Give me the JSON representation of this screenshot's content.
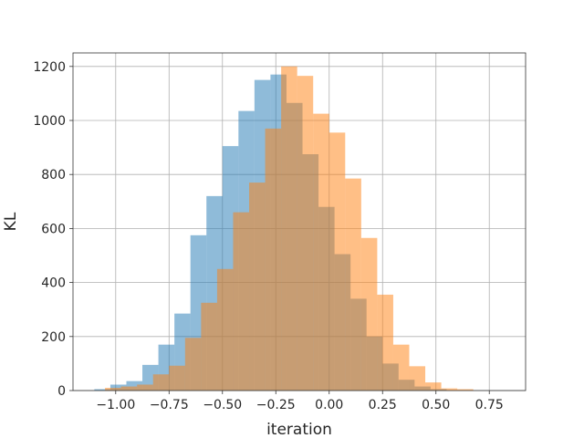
{
  "chart_data": {
    "type": "histogram",
    "title": "",
    "xlabel": "iteration",
    "ylabel": "KL",
    "xlim": [
      -1.2,
      0.92
    ],
    "ylim": [
      0,
      1250
    ],
    "xticks": [
      -1.0,
      -0.75,
      -0.5,
      -0.25,
      0.0,
      0.25,
      0.5,
      0.75
    ],
    "xtick_labels": [
      "−1.00",
      "−0.75",
      "−0.50",
      "−0.25",
      "0.00",
      "0.25",
      "0.50",
      "0.75"
    ],
    "yticks": [
      0,
      200,
      400,
      600,
      800,
      1000,
      1200
    ],
    "ytick_labels": [
      "0",
      "200",
      "400",
      "600",
      "800",
      "1000",
      "1200"
    ],
    "grid": true,
    "legend": "none",
    "bin_width": 0.075,
    "series": [
      {
        "color": "#1f77b4",
        "alpha": 0.5,
        "bin_start": -1.1,
        "counts": [
          5,
          22,
          35,
          95,
          170,
          285,
          575,
          720,
          905,
          1035,
          1150,
          1170,
          1065,
          875,
          680,
          505,
          340,
          200,
          100,
          40,
          15,
          5
        ]
      },
      {
        "color": "#ff7f0e",
        "alpha": 0.5,
        "bin_start": -1.05,
        "counts": [
          10,
          15,
          22,
          60,
          92,
          195,
          325,
          450,
          660,
          770,
          970,
          1200,
          1165,
          1025,
          955,
          785,
          565,
          355,
          170,
          90,
          30,
          8,
          5
        ]
      }
    ]
  }
}
